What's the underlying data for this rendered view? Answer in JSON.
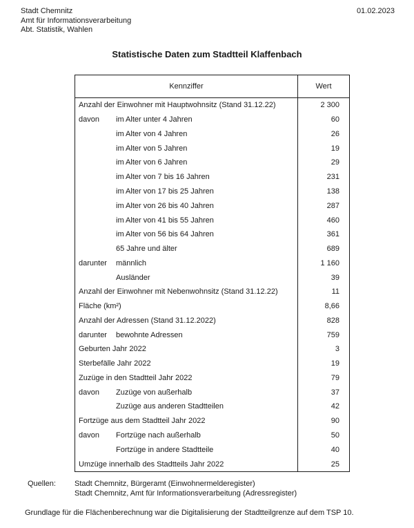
{
  "header": {
    "org_lines": [
      "Stadt Chemnitz",
      "Amt für Informationsverarbeitung",
      "Abt. Statistik, Wahlen"
    ],
    "date": "01.02.2023"
  },
  "title": "Statistische Daten zum Stadtteil Klaffenbach",
  "table": {
    "columns": [
      "Kennziffer",
      "Wert"
    ],
    "rows": [
      {
        "prefix": "",
        "label": "Anzahl der Einwohner mit Hauptwohnsitz (Stand 31.12.22)",
        "indent": 0,
        "value": "2 300"
      },
      {
        "prefix": "davon",
        "label": "im Alter unter 4 Jahren",
        "indent": 1,
        "value": "60"
      },
      {
        "prefix": "",
        "label": "im Alter von 4 Jahren",
        "indent": 1,
        "value": "26"
      },
      {
        "prefix": "",
        "label": "im Alter von 5 Jahren",
        "indent": 1,
        "value": "19"
      },
      {
        "prefix": "",
        "label": "im Alter von 6 Jahren",
        "indent": 1,
        "value": "29"
      },
      {
        "prefix": "",
        "label": "im Alter von 7 bis 16 Jahren",
        "indent": 1,
        "value": "231"
      },
      {
        "prefix": "",
        "label": "im Alter von 17 bis 25 Jahren",
        "indent": 1,
        "value": "138"
      },
      {
        "prefix": "",
        "label": "im Alter von 26 bis 40 Jahren",
        "indent": 1,
        "value": "287"
      },
      {
        "prefix": "",
        "label": "im Alter von 41 bis 55 Jahren",
        "indent": 1,
        "value": "460"
      },
      {
        "prefix": "",
        "label": "im Alter von 56 bis 64 Jahren",
        "indent": 1,
        "value": "361"
      },
      {
        "prefix": "",
        "label": "65 Jahre und älter",
        "indent": 1,
        "value": "689"
      },
      {
        "prefix": "darunter",
        "label": "männlich",
        "indent": 1,
        "value": "1 160"
      },
      {
        "prefix": "",
        "label": "Ausländer",
        "indent": 1,
        "value": "39"
      },
      {
        "prefix": "",
        "label": "Anzahl der Einwohner mit Nebenwohnsitz  (Stand 31.12.22)",
        "indent": 0,
        "value": "11"
      },
      {
        "prefix": "",
        "label": "Fläche (km²)",
        "indent": 0,
        "value": "8,66"
      },
      {
        "prefix": "",
        "label": "Anzahl der Adressen (Stand 31.12.2022)",
        "indent": 0,
        "value": "828"
      },
      {
        "prefix": "darunter",
        "label": "bewohnte Adressen",
        "indent": 1,
        "value": "759"
      },
      {
        "prefix": "",
        "label": "Geburten Jahr 2022",
        "indent": 0,
        "value": "3"
      },
      {
        "prefix": "",
        "label": "Sterbefälle Jahr 2022",
        "indent": 0,
        "value": "19"
      },
      {
        "prefix": "",
        "label": "Zuzüge in den Stadtteil Jahr 2022",
        "indent": 0,
        "value": "79"
      },
      {
        "prefix": "davon",
        "label": "Zuzüge von außerhalb",
        "indent": 1,
        "value": "37"
      },
      {
        "prefix": "",
        "label": "Zuzüge aus anderen Stadtteilen",
        "indent": 1,
        "value": "42"
      },
      {
        "prefix": "",
        "label": "Fortzüge aus dem Stadtteil Jahr 2022",
        "indent": 0,
        "value": "90"
      },
      {
        "prefix": "davon",
        "label": "Fortzüge nach außerhalb",
        "indent": 1,
        "value": "50"
      },
      {
        "prefix": "",
        "label": "Fortzüge in andere Stadtteile",
        "indent": 1,
        "value": "40"
      },
      {
        "prefix": "",
        "label": "Umzüge innerhalb des Stadtteils Jahr 2022",
        "indent": 0,
        "value": "25"
      }
    ]
  },
  "footer": {
    "sources_label": "Quellen:",
    "sources": [
      "Stadt Chemnitz, Bürgeramt (Einwohnermelderegister)",
      "Stadt Chemnitz, Amt für Informationsverarbeitung (Adressregister)"
    ],
    "note": "Grundlage für die Flächenberechnung war die Digitalisierung der Stadtteilgrenze auf dem TSP 10."
  },
  "colors": {
    "text": "#1a1a1a",
    "border": "#1a1a1a",
    "background": "#ffffff"
  }
}
